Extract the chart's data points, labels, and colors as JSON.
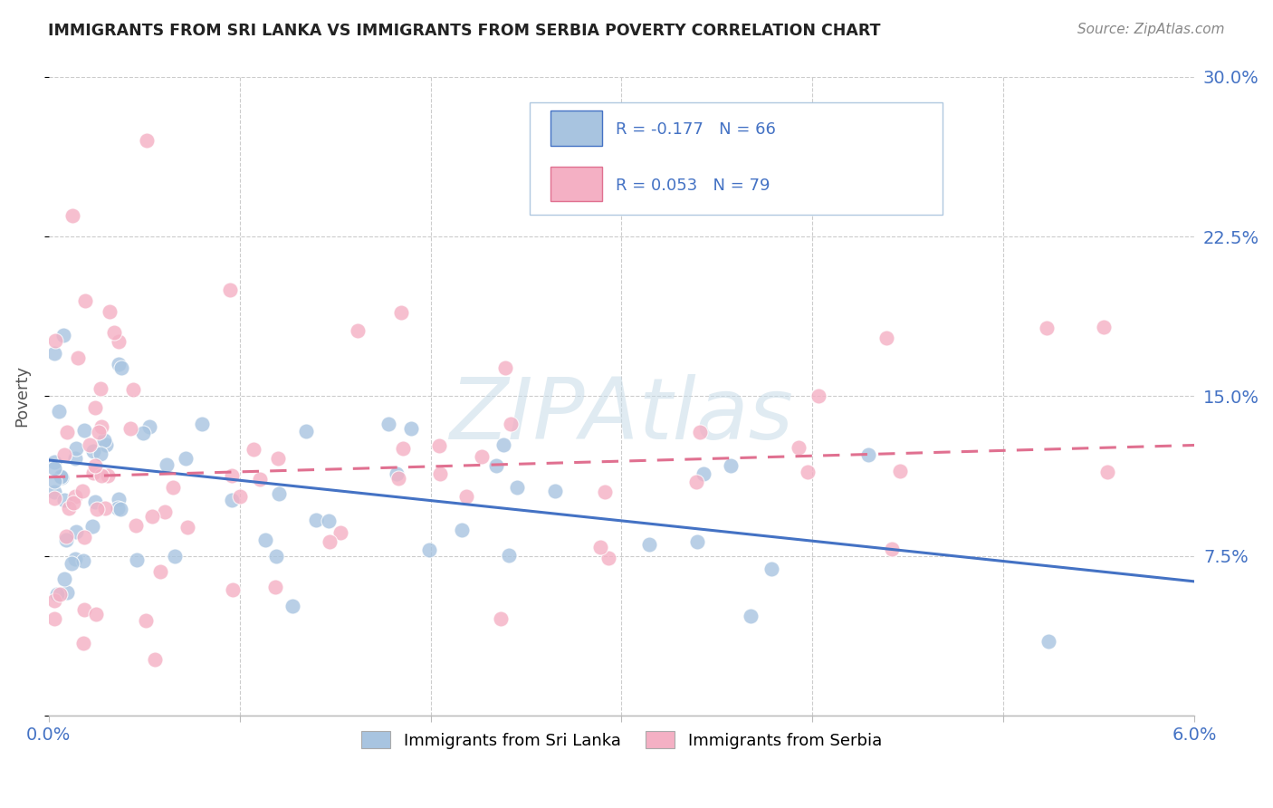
{
  "title": "IMMIGRANTS FROM SRI LANKA VS IMMIGRANTS FROM SERBIA POVERTY CORRELATION CHART",
  "source": "Source: ZipAtlas.com",
  "ylabel": "Poverty",
  "xlim": [
    0.0,
    0.06
  ],
  "ylim": [
    0.0,
    0.3
  ],
  "series1_name": "Immigrants from Sri Lanka",
  "series1_color": "#a8c4e0",
  "series1_line_color": "#4472c4",
  "series1_R": -0.177,
  "series1_N": 66,
  "series2_name": "Immigrants from Serbia",
  "series2_color": "#f4b0c4",
  "series2_line_color": "#e07090",
  "series2_R": 0.053,
  "series2_N": 79,
  "background_color": "#ffffff",
  "grid_color": "#cccccc",
  "title_color": "#222222",
  "tick_label_color": "#4472c4",
  "watermark": "ZIPAtlas",
  "watermark_color": "#d8e8f0",
  "trend1_x0": 0.0,
  "trend1_y0": 0.12,
  "trend1_x1": 0.06,
  "trend1_y1": 0.063,
  "trend2_x0": 0.0,
  "trend2_y0": 0.112,
  "trend2_x1": 0.06,
  "trend2_y1": 0.127
}
